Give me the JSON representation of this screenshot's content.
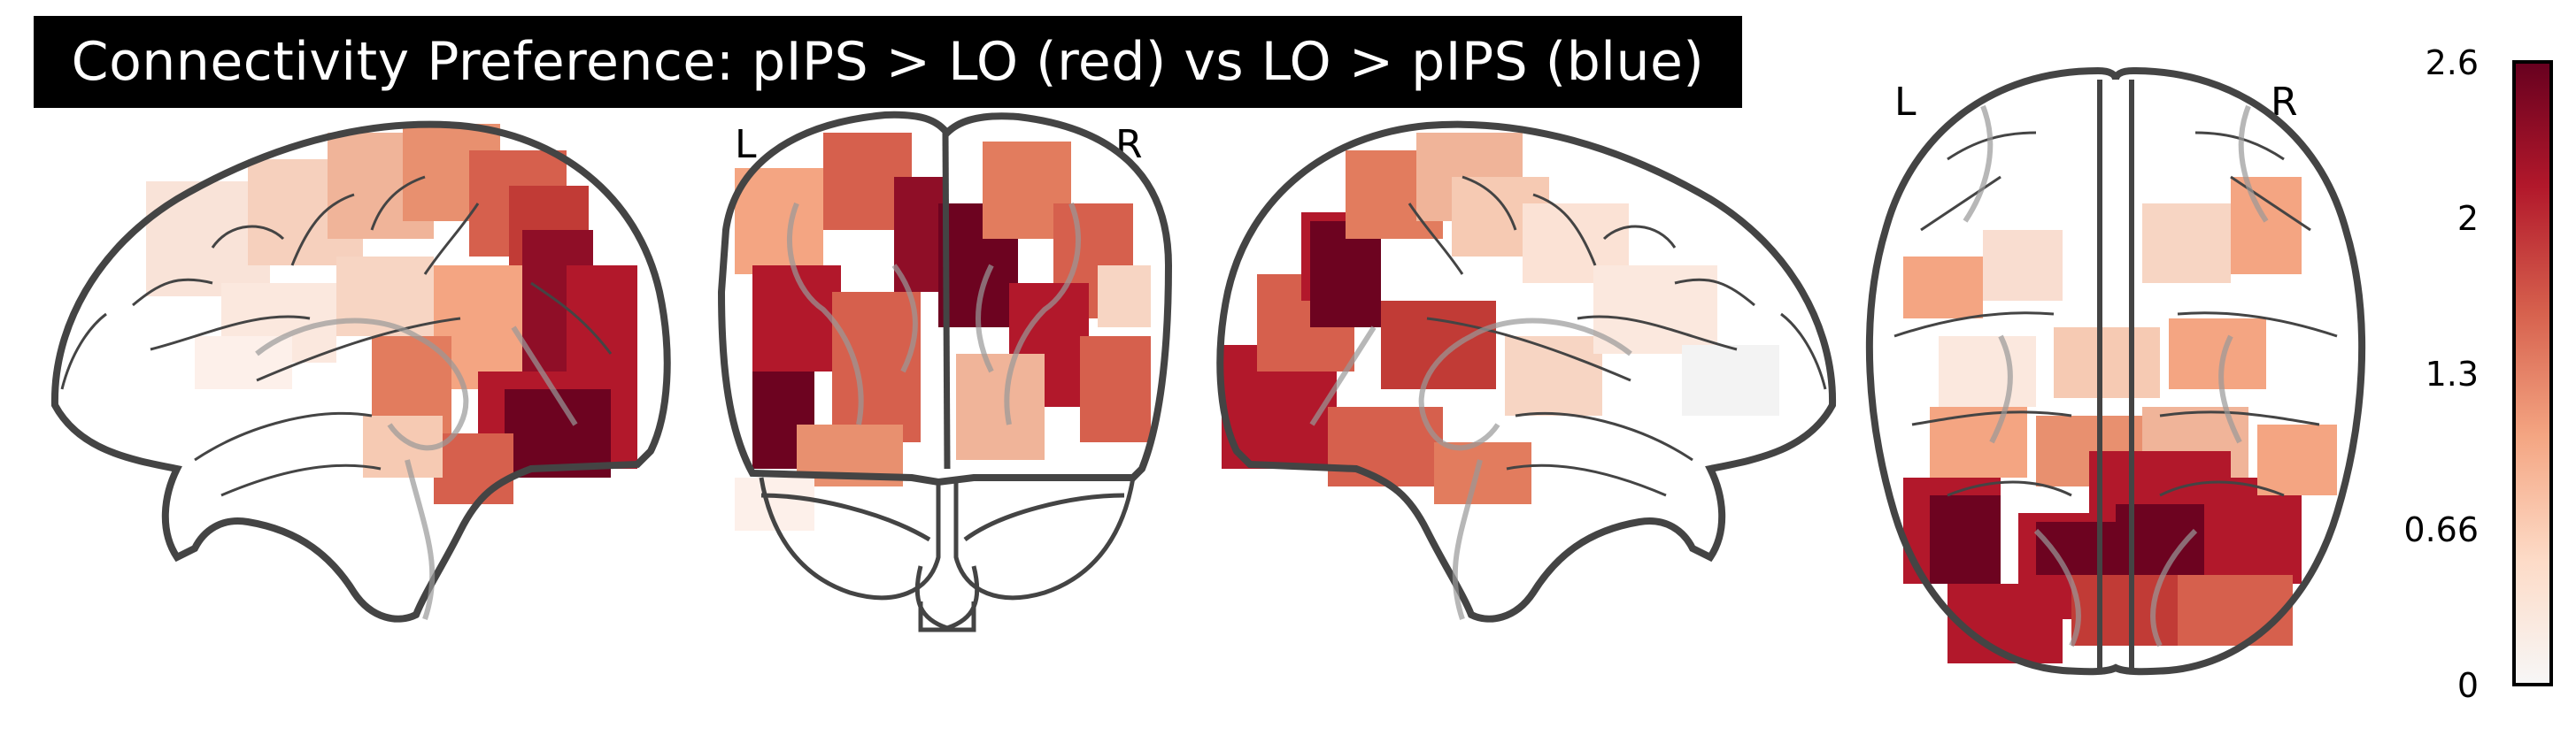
{
  "title": "Connectivity Preference: pIPS > LO (red) vs LO > pIPS (blue)",
  "views": {
    "coronal": {
      "left_label": "L",
      "right_label": "R"
    },
    "axial": {
      "left_label": "L",
      "right_label": "R"
    }
  },
  "colorbar": {
    "ticks": [
      "2.6",
      "2",
      "1.3",
      "0.66",
      "0"
    ],
    "colors": [
      "#67001f",
      "#b2182b",
      "#d6604d",
      "#f4a582",
      "#fddbc7",
      "#f7f7f7"
    ]
  },
  "icons": [
    "brain-sagittal-left",
    "brain-coronal",
    "brain-sagittal-right",
    "brain-axial"
  ]
}
